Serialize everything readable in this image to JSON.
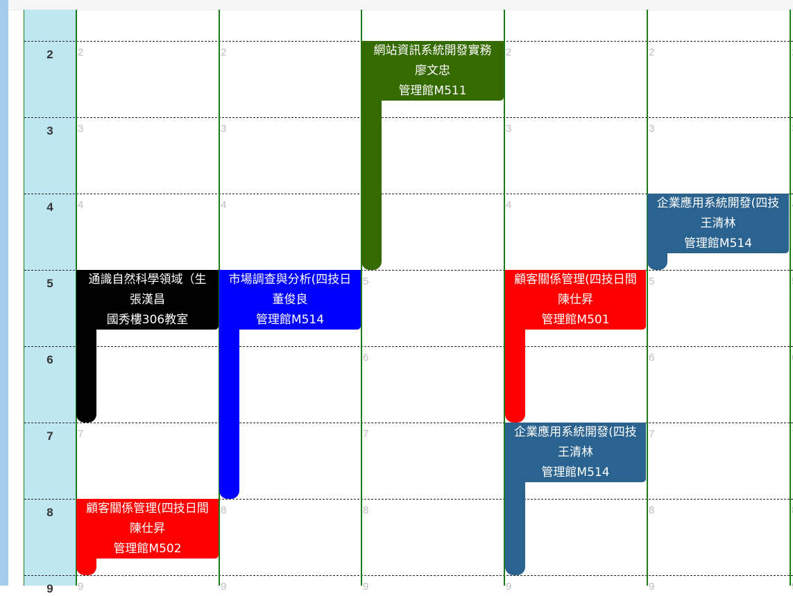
{
  "hours": [
    "2",
    "3",
    "4",
    "5",
    "6",
    "7",
    "8",
    "9"
  ],
  "colors": {
    "green_event": "#356a00",
    "blue_event": "#0000ff",
    "black_event": "#000000",
    "red_event": "#ff0000",
    "steel_event": "#2b6390",
    "gutter": "#bfe7f1",
    "grid_line": "#1a7a1a"
  },
  "events": [
    {
      "id": "web-info-dev",
      "day": 3,
      "course": "網站資訊系統開發實務",
      "teacher": "廖文忠",
      "room": "管理館M511",
      "color": "#356a00"
    },
    {
      "id": "enterprise-app-dev-fri",
      "day": 5,
      "course": "企業應用系統開發(四技",
      "teacher": "王清林",
      "room": "管理館M514",
      "color": "#2b6390"
    },
    {
      "id": "general-science",
      "day": 1,
      "course": "通識自然科學領域（生",
      "teacher": "張漢昌",
      "room": "國秀樓306教室",
      "color": "#000000"
    },
    {
      "id": "market-research",
      "day": 2,
      "course": "市場調查與分析(四技日",
      "teacher": "董俊良",
      "room": "管理館M514",
      "color": "#0000ff"
    },
    {
      "id": "crm-thu",
      "day": 4,
      "course": "顧客關係管理(四技日間",
      "teacher": "陳仕昇",
      "room": "管理館M501",
      "color": "#ff0000"
    },
    {
      "id": "enterprise-app-dev-thu",
      "day": 4,
      "course": "企業應用系統開發(四技",
      "teacher": "王清林",
      "room": "管理館M514",
      "color": "#2b6390"
    },
    {
      "id": "crm-mon",
      "day": 1,
      "course": "顧客關係管理(四技日間",
      "teacher": "陳仕昇",
      "room": "管理館M502",
      "color": "#ff0000"
    }
  ]
}
